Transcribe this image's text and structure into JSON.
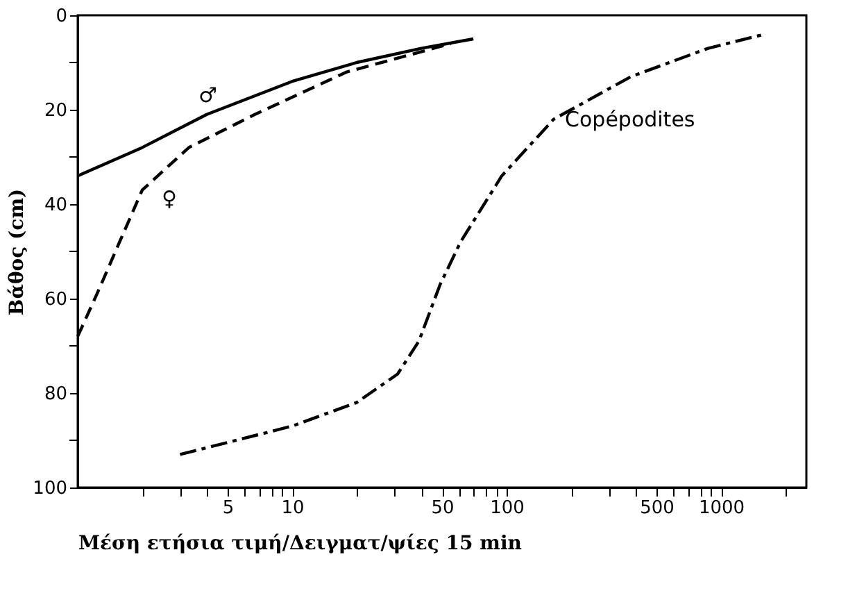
{
  "chart_data": {
    "type": "line",
    "xlabel": "Μέση ετήσια τιμή/Δειγματ/ψίες 15 min",
    "ylabel": "Βάθος (cm)",
    "log": "x",
    "grid": false,
    "legend": false,
    "marker": "none",
    "xlim": [
      1,
      2500
    ],
    "ylim": [
      100,
      0
    ],
    "xticks": [
      {
        "value": 2,
        "label": null
      },
      {
        "value": 3,
        "label": null
      },
      {
        "value": 4,
        "label": null
      },
      5,
      {
        "value": 6,
        "label": null
      },
      {
        "value": 7,
        "label": null
      },
      {
        "value": 8,
        "label": null
      },
      {
        "value": 9,
        "label": null
      },
      10,
      {
        "value": 20,
        "label": null
      },
      {
        "value": 30,
        "label": null
      },
      {
        "value": 40,
        "label": null
      },
      50,
      {
        "value": 60,
        "label": null
      },
      {
        "value": 70,
        "label": null
      },
      {
        "value": 80,
        "label": null
      },
      {
        "value": 90,
        "label": null
      },
      100,
      {
        "value": 200,
        "label": null
      },
      {
        "value": 300,
        "label": null
      },
      {
        "value": 400,
        "label": null
      },
      500,
      {
        "value": 600,
        "label": null
      },
      {
        "value": 700,
        "label": null
      },
      {
        "value": 800,
        "label": null
      },
      {
        "value": 900,
        "label": null
      },
      1000,
      {
        "value": 2000,
        "label": null
      }
    ],
    "yticks": [
      0,
      {
        "value": 10,
        "label": null
      },
      20,
      {
        "value": 30,
        "label": null
      },
      40,
      {
        "value": 50,
        "label": null
      },
      60,
      {
        "value": 70,
        "label": null
      },
      80,
      {
        "value": 90,
        "label": null
      },
      100
    ],
    "series": [
      {
        "name": "♂",
        "color": "#000000",
        "line_style": "solid",
        "x": [
          1,
          2,
          4,
          10,
          20,
          40,
          70
        ],
        "values": [
          34,
          28,
          21,
          14,
          10,
          7,
          5
        ]
      },
      {
        "name": "♀",
        "color": "#000000",
        "line_style": "dashed",
        "x": [
          1,
          1.23,
          1.5,
          2,
          3.3,
          6.7,
          18,
          55
        ],
        "values": [
          68,
          59,
          50,
          37,
          28,
          21,
          12,
          6
        ]
      },
      {
        "name": "Copépodites",
        "color": "#000000",
        "line_style": "dashdot",
        "x": [
          3,
          10,
          20,
          31,
          39,
          49,
          61,
          95,
          166,
          380,
          870,
          1600
        ],
        "values": [
          93,
          87,
          82,
          76,
          69,
          57,
          48,
          34,
          22,
          13,
          7,
          4
        ]
      }
    ]
  }
}
